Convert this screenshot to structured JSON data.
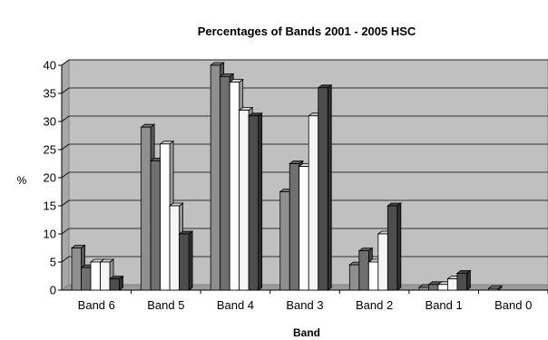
{
  "chart_data": {
    "type": "bar",
    "title": "Percentages of Bands 2001 - 2005 HSC",
    "xlabel": "Band",
    "ylabel": "%",
    "ylim": [
      0,
      40
    ],
    "yticks": [
      "0",
      "5",
      "10",
      "15",
      "20",
      "25",
      "30",
      "35",
      "40"
    ],
    "categories": [
      "Band 6",
      "Band 5",
      "Band 4",
      "Band 3",
      "Band 2",
      "Band 1",
      "Band 0"
    ],
    "grid": true,
    "style": "3d-clustered",
    "series": [
      {
        "color": "#8f8f8f",
        "values": [
          7.5,
          29,
          40,
          17.5,
          4.5,
          0.5,
          0.3
        ]
      },
      {
        "color": "#6f6f6f",
        "values": [
          4,
          23,
          38,
          22.5,
          7,
          1,
          0
        ]
      },
      {
        "color": "#ffffff",
        "values": [
          5,
          26,
          37,
          22,
          5,
          1,
          0
        ]
      },
      {
        "color": "#f5f5f5",
        "values": [
          5,
          15,
          32,
          31,
          10,
          2,
          0
        ]
      },
      {
        "color": "#4d4d4d",
        "values": [
          2,
          10,
          31,
          36,
          15,
          3,
          0
        ]
      }
    ]
  }
}
